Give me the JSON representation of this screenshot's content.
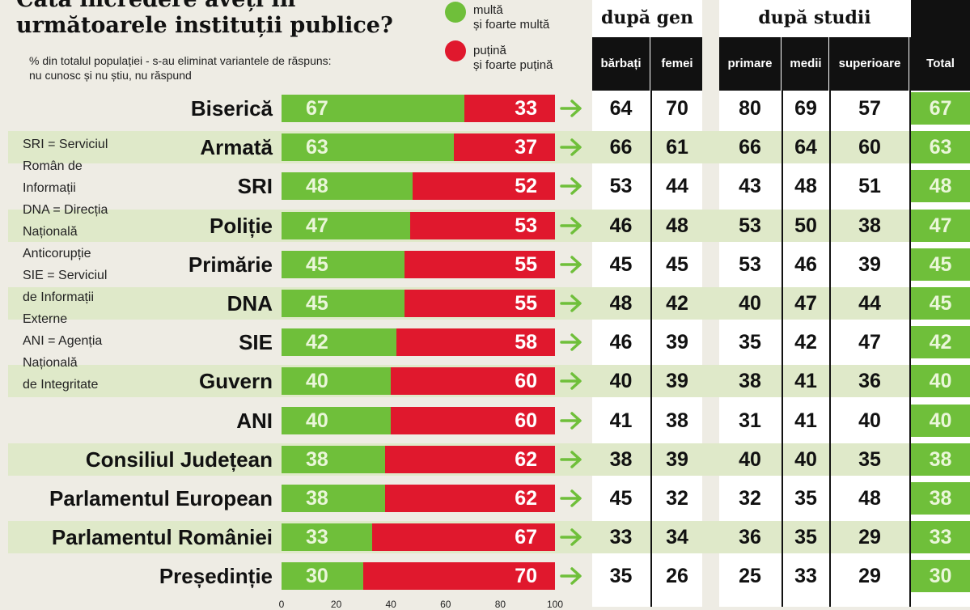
{
  "title": {
    "line1": "Câtă încredere aveți în",
    "line2": "următoarele instituții publice?"
  },
  "subtitle": {
    "line1": "% din totalul populației - s-au eliminat variantele de răspuns:",
    "line2": "nu cunosc și nu știu, nu răspund"
  },
  "legend": {
    "green_line1": "multă",
    "green_line2": "și foarte multă",
    "red_line1": "puțină",
    "red_line2": "și foarte puțină"
  },
  "colors": {
    "green": "#6fbf3a",
    "red": "#e0182d",
    "band": "#dfe9c9",
    "background": "#eeece4"
  },
  "notes": [
    "SRI = Serviciul",
    "Român de",
    "Informații",
    "DNA = Direcția",
    "Națională",
    "Anticorupție",
    "SIE = Serviciul",
    "de Informații",
    "Externe",
    "ANI = Agenția",
    "Națională",
    "de Integritate"
  ],
  "table": {
    "group_gender": "după gen",
    "group_studies": "după studii",
    "headers": {
      "barbati": "bărbați",
      "femei": "femei",
      "primare": "primare",
      "medii": "medii",
      "superioare": "superioare",
      "total": "Total"
    }
  },
  "chart_data": {
    "type": "bar",
    "stacked": true,
    "orientation": "horizontal",
    "categories": [
      "Biserică",
      "Armată",
      "SRI",
      "Poliție",
      "Primărie",
      "DNA",
      "SIE",
      "Guvern",
      "ANI",
      "Consiliul Județean",
      "Parlamentul European",
      "Parlamentul României",
      "Președinție"
    ],
    "series": [
      {
        "name": "multă și foarte multă",
        "color": "#6fbf3a",
        "values": [
          67,
          63,
          48,
          47,
          45,
          45,
          42,
          40,
          40,
          38,
          38,
          33,
          30
        ]
      },
      {
        "name": "puțină și foarte puțină",
        "color": "#e0182d",
        "values": [
          33,
          37,
          52,
          53,
          55,
          55,
          58,
          60,
          60,
          62,
          62,
          67,
          70
        ]
      }
    ],
    "xlim": [
      0,
      100
    ],
    "xticks": [
      "0",
      "20",
      "40",
      "60",
      "80",
      "100"
    ],
    "breakdown": {
      "barbati": [
        64,
        66,
        53,
        46,
        45,
        48,
        46,
        40,
        41,
        38,
        45,
        33,
        35
      ],
      "femei": [
        70,
        61,
        44,
        48,
        45,
        42,
        39,
        39,
        38,
        39,
        32,
        34,
        26
      ],
      "primare": [
        80,
        66,
        43,
        53,
        53,
        40,
        35,
        38,
        31,
        40,
        32,
        36,
        25
      ],
      "medii": [
        69,
        64,
        48,
        50,
        46,
        47,
        42,
        41,
        41,
        40,
        35,
        35,
        33
      ],
      "superioare": [
        57,
        60,
        51,
        38,
        39,
        44,
        47,
        36,
        40,
        35,
        48,
        29,
        29
      ],
      "total": [
        67,
        63,
        48,
        47,
        45,
        45,
        42,
        40,
        40,
        38,
        38,
        33,
        30
      ]
    }
  }
}
